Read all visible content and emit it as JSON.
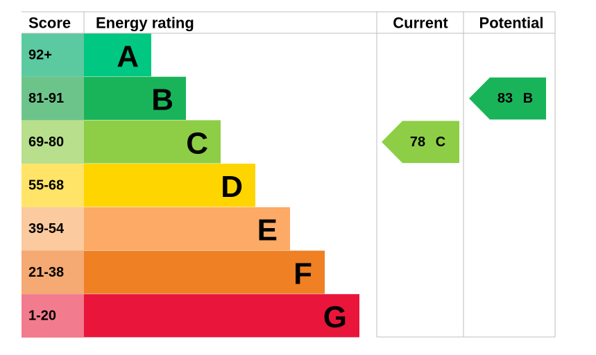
{
  "header": {
    "score": "Score",
    "rating": "Energy rating",
    "current": "Current",
    "potential": "Potential"
  },
  "bands": [
    {
      "score": "92+",
      "letter": "A",
      "color": "#00c781",
      "score_color": "#5ccaa0"
    },
    {
      "score": "81-91",
      "letter": "B",
      "color": "#19b459",
      "score_color": "#6dc48a"
    },
    {
      "score": "69-80",
      "letter": "C",
      "color": "#8dce46",
      "score_color": "#b8df8c"
    },
    {
      "score": "55-68",
      "letter": "D",
      "color": "#ffd500",
      "score_color": "#ffe467"
    },
    {
      "score": "39-54",
      "letter": "E",
      "color": "#fcaa65",
      "score_color": "#fbca9e"
    },
    {
      "score": "21-38",
      "letter": "F",
      "color": "#ef8023",
      "score_color": "#f4aa72"
    },
    {
      "score": "1-20",
      "letter": "G",
      "color": "#e9153b",
      "score_color": "#f27b8d"
    }
  ],
  "current": {
    "value": 78,
    "letter": "C"
  },
  "potential": {
    "value": 83,
    "letter": "B"
  }
}
